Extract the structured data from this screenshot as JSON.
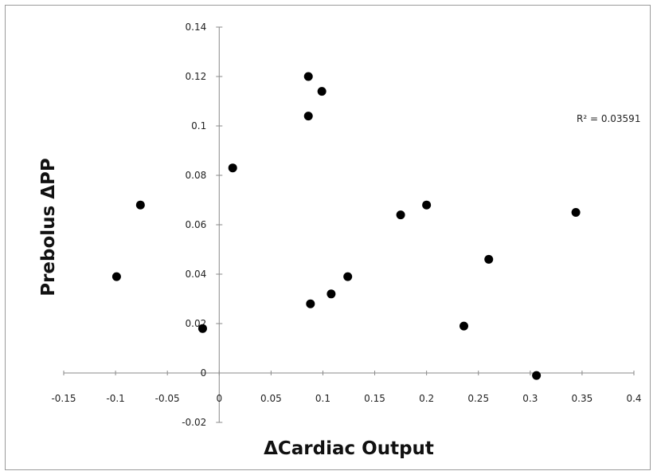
{
  "chart_data": {
    "type": "scatter",
    "xlabel": "ΔCardiac Output",
    "ylabel": "Prebolus ΔPP",
    "xlim": [
      -0.15,
      0.4
    ],
    "ylim": [
      -0.02,
      0.14
    ],
    "x_ticks": [
      "-0.15",
      "-0.1",
      "-0.05",
      "0",
      "0.05",
      "0.1",
      "0.15",
      "0.2",
      "0.25",
      "0.3",
      "0.35",
      "0.4"
    ],
    "y_ticks": [
      "-0.02",
      "0",
      "0.02",
      "0.04",
      "0.06",
      "0.08",
      "0.1",
      "0.12",
      "0.14"
    ],
    "annotation": "R² = 0.03591",
    "grid": false,
    "marker_color": "#000000",
    "points": [
      {
        "x": -0.099,
        "y": 0.039
      },
      {
        "x": -0.076,
        "y": 0.068
      },
      {
        "x": -0.016,
        "y": 0.018
      },
      {
        "x": 0.013,
        "y": 0.083
      },
      {
        "x": 0.086,
        "y": 0.12
      },
      {
        "x": 0.099,
        "y": 0.114
      },
      {
        "x": 0.086,
        "y": 0.104
      },
      {
        "x": 0.088,
        "y": 0.028
      },
      {
        "x": 0.108,
        "y": 0.032
      },
      {
        "x": 0.124,
        "y": 0.039
      },
      {
        "x": 0.175,
        "y": 0.064
      },
      {
        "x": 0.2,
        "y": 0.068
      },
      {
        "x": 0.236,
        "y": 0.019
      },
      {
        "x": 0.26,
        "y": 0.046
      },
      {
        "x": 0.306,
        "y": -0.001
      },
      {
        "x": 0.344,
        "y": 0.065
      }
    ]
  }
}
